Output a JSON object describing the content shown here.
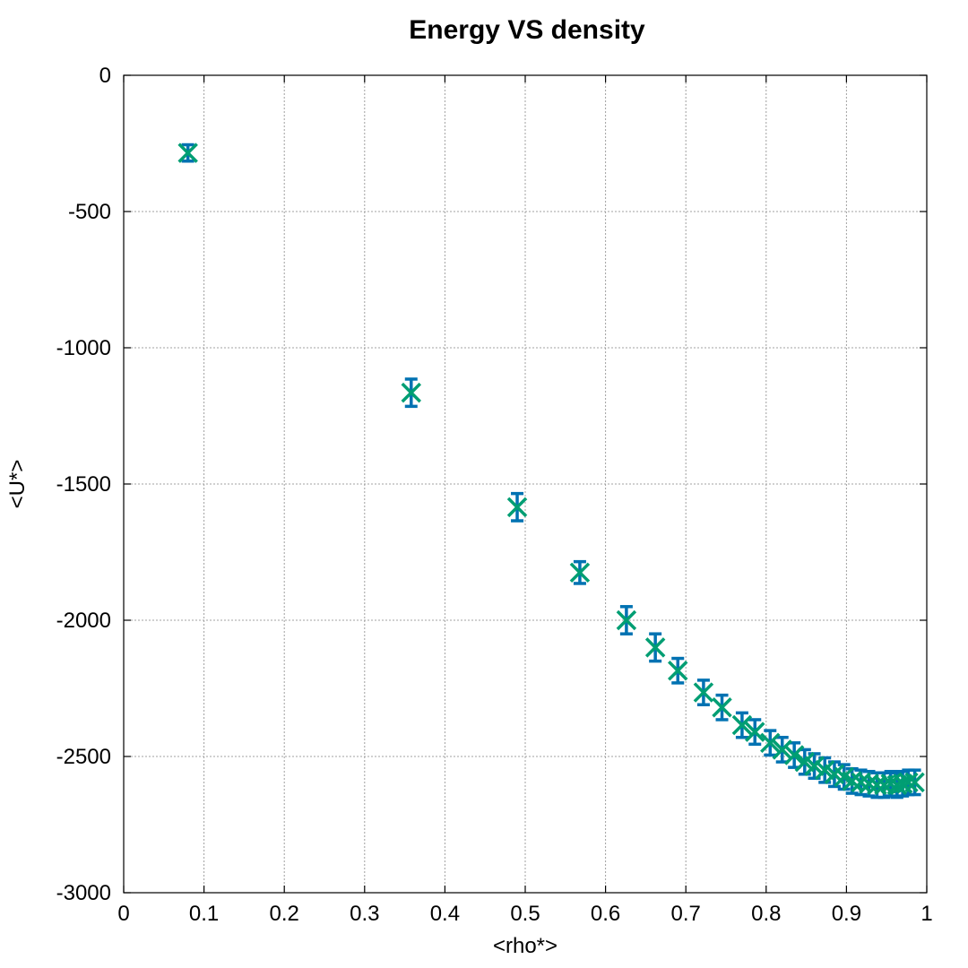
{
  "chart_data": {
    "type": "scatter",
    "title": "Energy VS density",
    "xlabel": "<rho*>",
    "ylabel": "<U*>",
    "xlim": [
      0,
      1
    ],
    "ylim": [
      -3000,
      0
    ],
    "xticks": [
      "0",
      "0.1",
      "0.2",
      "0.3",
      "0.4",
      "0.5",
      "0.6",
      "0.7",
      "0.8",
      "0.9",
      "1"
    ],
    "yticks": [
      "0",
      "-500",
      "-1000",
      "-1500",
      "-2000",
      "-2500",
      "-3000"
    ],
    "grid": true,
    "legend": "none",
    "series": [
      {
        "style": "errorbars",
        "color": "#0072b2",
        "x": [
          0.08,
          0.358,
          0.49,
          0.568,
          0.626,
          0.662,
          0.69,
          0.722,
          0.745,
          0.77,
          0.786,
          0.805,
          0.82,
          0.835,
          0.848,
          0.86,
          0.873,
          0.885,
          0.897,
          0.907,
          0.918,
          0.928,
          0.938,
          0.947,
          0.955,
          0.963,
          0.97,
          0.977,
          0.985
        ],
        "y": [
          -285,
          -1165,
          -1585,
          -1825,
          -2000,
          -2100,
          -2185,
          -2265,
          -2320,
          -2385,
          -2410,
          -2450,
          -2475,
          -2495,
          -2520,
          -2535,
          -2550,
          -2565,
          -2575,
          -2590,
          -2595,
          -2600,
          -2605,
          -2605,
          -2600,
          -2605,
          -2600,
          -2595,
          -2595
        ],
        "yerr": [
          30,
          50,
          50,
          40,
          50,
          50,
          45,
          45,
          45,
          45,
          45,
          45,
          45,
          45,
          45,
          45,
          45,
          45,
          45,
          45,
          45,
          45,
          45,
          45,
          45,
          45,
          45,
          45,
          45
        ]
      },
      {
        "style": "markers-x",
        "color": "#009e73",
        "x": [
          0.08,
          0.358,
          0.49,
          0.568,
          0.626,
          0.662,
          0.69,
          0.722,
          0.745,
          0.77,
          0.786,
          0.805,
          0.82,
          0.835,
          0.848,
          0.86,
          0.873,
          0.885,
          0.897,
          0.907,
          0.918,
          0.928,
          0.938,
          0.947,
          0.955,
          0.963,
          0.97,
          0.977,
          0.985
        ],
        "y": [
          -285,
          -1165,
          -1585,
          -1825,
          -2000,
          -2100,
          -2185,
          -2265,
          -2320,
          -2385,
          -2410,
          -2450,
          -2475,
          -2495,
          -2520,
          -2535,
          -2550,
          -2565,
          -2575,
          -2590,
          -2595,
          -2600,
          -2605,
          -2605,
          -2600,
          -2605,
          -2600,
          -2595,
          -2595
        ]
      }
    ]
  }
}
